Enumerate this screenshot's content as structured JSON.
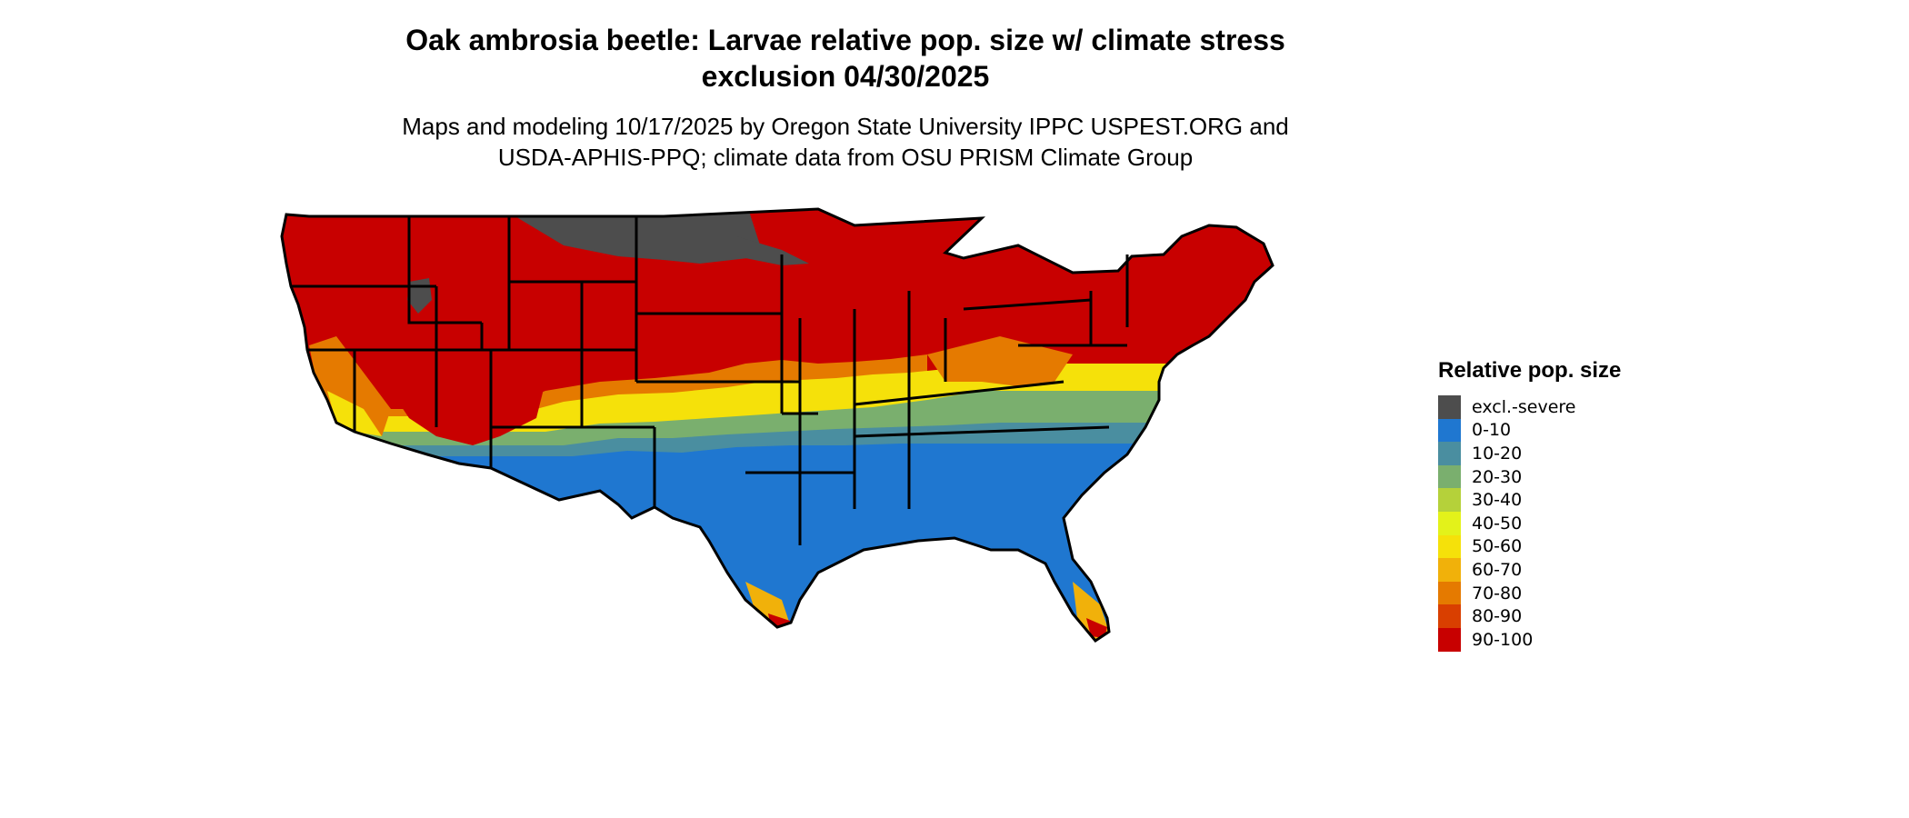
{
  "header": {
    "title_line1": "Oak ambrosia beetle: Larvae relative pop. size w/ climate stress",
    "title_line2": "exclusion 04/30/2025",
    "subtitle_line1": "Maps and modeling 10/17/2025 by Oregon State University IPPC USPEST.ORG and",
    "subtitle_line2": "USDA-APHIS-PPQ; climate data from OSU PRISM Climate Group"
  },
  "legend": {
    "title": "Relative pop. size",
    "items": [
      {
        "label": "excl.-severe",
        "color": "#4d4d4d"
      },
      {
        "label": "0-10",
        "color": "#1f77d0"
      },
      {
        "label": "10-20",
        "color": "#4a8ea0"
      },
      {
        "label": "20-30",
        "color": "#7aaf6e"
      },
      {
        "label": "30-40",
        "color": "#b5d13a"
      },
      {
        "label": "40-50",
        "color": "#e3f21a"
      },
      {
        "label": "50-60",
        "color": "#f5e10a"
      },
      {
        "label": "60-70",
        "color": "#f1b10a"
      },
      {
        "label": "70-80",
        "color": "#e57a00"
      },
      {
        "label": "80-90",
        "color": "#d93f00"
      },
      {
        "label": "90-100",
        "color": "#c80000"
      }
    ]
  }
}
